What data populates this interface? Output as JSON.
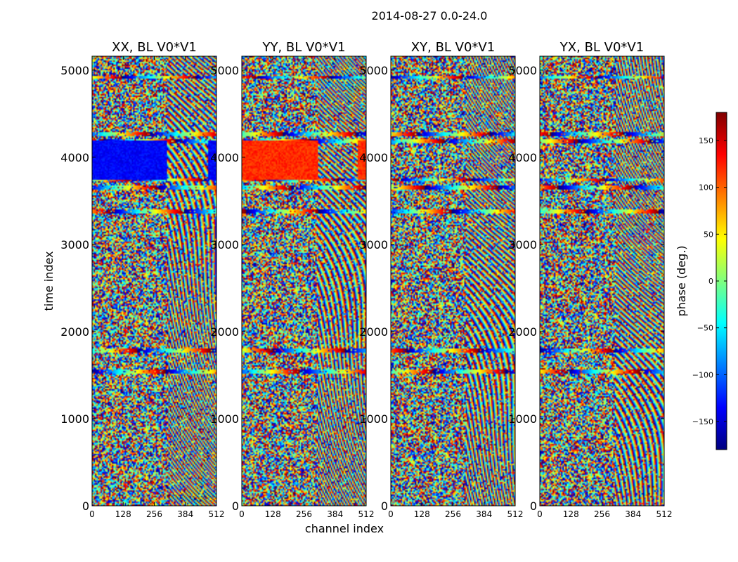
{
  "figure": {
    "suptitle": "2014-08-27 0.0-24.0"
  },
  "chart_data": {
    "type": "heatmap",
    "title": "2014-08-27 0.0-24.0",
    "xlabel": "channel index",
    "ylabel": "time index",
    "xlim": [
      0,
      512
    ],
    "ylim": [
      0,
      5160
    ],
    "x_ticks": [
      "0",
      "128",
      "256",
      "384",
      "512"
    ],
    "y_ticks": [
      "0",
      "1000",
      "2000",
      "3000",
      "4000",
      "5000"
    ],
    "colormap": "jet",
    "colorbar": {
      "label": "phase (deg.)",
      "range": [
        -180,
        180
      ],
      "ticks": [
        "150",
        "100",
        "50",
        "0",
        "−50",
        "−100",
        "−150"
      ],
      "colors": [
        "#00007f",
        "#0000ff",
        "#007fff",
        "#00ffff",
        "#7fff7f",
        "#ffff00",
        "#ff7f00",
        "#ff0000",
        "#7f0000"
      ]
    },
    "panels": [
      {
        "title": "XX, BL V0*V1",
        "band": {
          "time_range": [
            3740,
            4190
          ],
          "phase_deg": -135,
          "channel_range": [
            0,
            310
          ],
          "edge_channel_range": [
            480,
            512
          ]
        }
      },
      {
        "title": "YY, BL V0*V1",
        "band": {
          "time_range": [
            3740,
            4190
          ],
          "phase_deg": 120,
          "channel_range": [
            0,
            315
          ],
          "edge_channel_range": [
            480,
            512
          ]
        }
      },
      {
        "title": "XY, BL V0*V1",
        "band": null
      },
      {
        "title": "YX, BL V0*V1",
        "band": null
      }
    ],
    "features": {
      "fringe_start_channel": 310,
      "horizontal_lines_time": [
        1540,
        1780,
        3380,
        3650,
        3740,
        4190,
        4260,
        4920
      ]
    }
  }
}
